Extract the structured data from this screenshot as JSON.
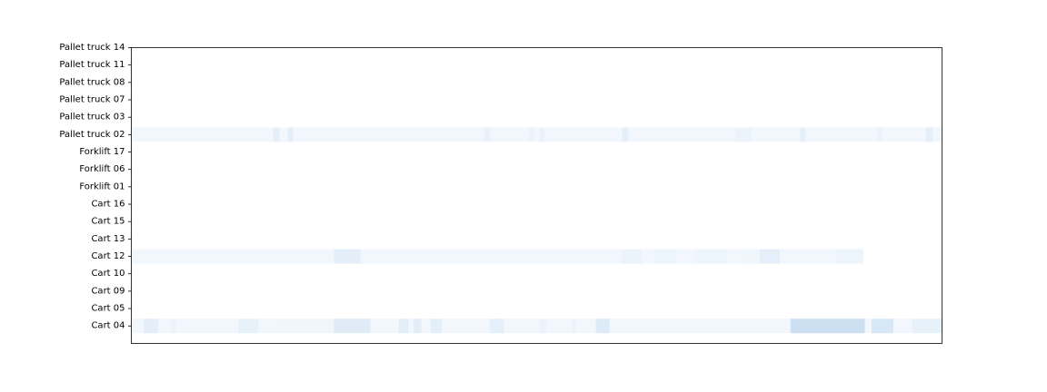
{
  "chart_data": {
    "type": "heatmap",
    "title": "",
    "xlabel": "",
    "ylabel": "",
    "x_ticks_visible": false,
    "colormap": "Blues",
    "value_range": [
      0,
      1
    ],
    "x_range": [
      0,
      100
    ],
    "categories": [
      "Pallet truck 14",
      "Pallet truck 11",
      "Pallet truck 08",
      "Pallet truck 07",
      "Pallet truck 03",
      "Pallet truck 02",
      "Forklift 17",
      "Forklift 06",
      "Forklift 01",
      "Cart 16",
      "Cart 15",
      "Cart 13",
      "Cart 12",
      "Cart 10",
      "Cart 09",
      "Cart 05",
      "Cart 04"
    ],
    "rows": [
      {
        "name": "Pallet truck 02",
        "segments": [
          [
            0,
            17.5,
            0.03
          ],
          [
            17.5,
            18.3,
            0.09
          ],
          [
            18.3,
            19.3,
            0.03
          ],
          [
            19.3,
            20.0,
            0.09
          ],
          [
            20.0,
            43.5,
            0.03
          ],
          [
            43.5,
            44.3,
            0.07
          ],
          [
            44.3,
            49.0,
            0.03
          ],
          [
            49.0,
            49.7,
            0.06
          ],
          [
            49.7,
            50.3,
            0.03
          ],
          [
            50.3,
            51.0,
            0.07
          ],
          [
            51.0,
            60.5,
            0.03
          ],
          [
            60.5,
            61.3,
            0.09
          ],
          [
            61.3,
            74.5,
            0.03
          ],
          [
            74.5,
            76.5,
            0.06
          ],
          [
            76.5,
            82.5,
            0.03
          ],
          [
            82.5,
            83.2,
            0.09
          ],
          [
            83.2,
            92.0,
            0.03
          ],
          [
            92.0,
            92.7,
            0.06
          ],
          [
            92.7,
            98.0,
            0.03
          ],
          [
            98.0,
            98.9,
            0.09
          ],
          [
            98.9,
            100,
            0.03
          ]
        ]
      },
      {
        "name": "Cart 12",
        "segments": [
          [
            0,
            25.0,
            0.03
          ],
          [
            25.0,
            28.3,
            0.1
          ],
          [
            28.3,
            60.5,
            0.03
          ],
          [
            60.5,
            63.0,
            0.06
          ],
          [
            63.0,
            64.5,
            0.03
          ],
          [
            64.5,
            67.3,
            0.05
          ],
          [
            67.3,
            69.5,
            0.03
          ],
          [
            69.5,
            73.5,
            0.05
          ],
          [
            73.5,
            75.5,
            0.03
          ],
          [
            75.5,
            77.5,
            0.04
          ],
          [
            77.5,
            80.0,
            0.09
          ],
          [
            80.0,
            87.0,
            0.03
          ],
          [
            87.0,
            90.3,
            0.05
          ]
        ]
      },
      {
        "name": "Cart 04",
        "segments": [
          [
            0,
            1.5,
            0.03
          ],
          [
            1.5,
            3.3,
            0.1
          ],
          [
            3.3,
            4.8,
            0.03
          ],
          [
            4.8,
            5.5,
            0.06
          ],
          [
            5.5,
            13.2,
            0.03
          ],
          [
            13.2,
            15.7,
            0.08
          ],
          [
            15.7,
            18.5,
            0.03
          ],
          [
            18.5,
            25.0,
            0.04
          ],
          [
            25.0,
            29.5,
            0.12
          ],
          [
            29.5,
            33.0,
            0.03
          ],
          [
            33.0,
            34.2,
            0.1
          ],
          [
            34.2,
            34.8,
            0.03
          ],
          [
            34.8,
            35.8,
            0.1
          ],
          [
            35.8,
            36.9,
            0.03
          ],
          [
            36.9,
            38.3,
            0.1
          ],
          [
            38.3,
            44.2,
            0.03
          ],
          [
            44.2,
            46.0,
            0.09
          ],
          [
            46.0,
            50.3,
            0.03
          ],
          [
            50.3,
            51.2,
            0.06
          ],
          [
            51.2,
            54.3,
            0.03
          ],
          [
            54.3,
            54.9,
            0.06
          ],
          [
            54.9,
            57.3,
            0.03
          ],
          [
            57.3,
            59.0,
            0.13
          ],
          [
            59.0,
            81.3,
            0.03
          ],
          [
            81.3,
            90.5,
            0.22
          ],
          [
            90.5,
            91.3,
            0.03
          ],
          [
            91.3,
            94.0,
            0.16
          ],
          [
            94.0,
            96.3,
            0.03
          ],
          [
            96.3,
            100,
            0.08
          ]
        ]
      }
    ]
  }
}
